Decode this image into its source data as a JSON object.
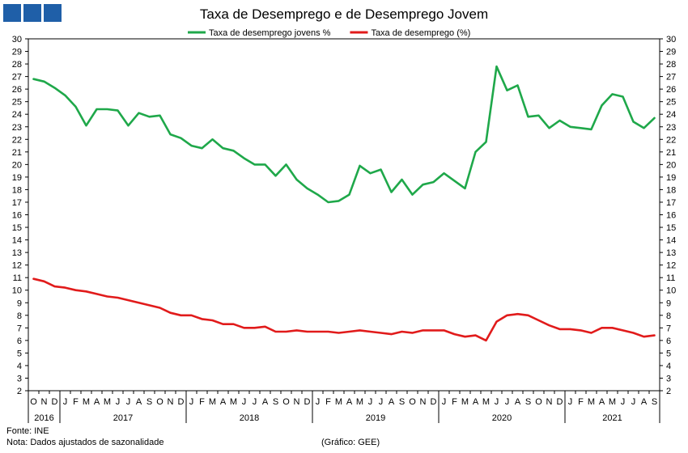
{
  "chart_data": {
    "type": "line",
    "title": "Taxa de Desemprego e de Desemprego Jovem",
    "ylim": [
      2,
      30
    ],
    "y_ticks": [
      2,
      3,
      4,
      5,
      6,
      7,
      8,
      9,
      10,
      11,
      12,
      13,
      14,
      15,
      16,
      17,
      18,
      19,
      20,
      21,
      22,
      23,
      24,
      25,
      26,
      27,
      28,
      29,
      30
    ],
    "x_month_labels": [
      "O",
      "N",
      "D",
      "J",
      "F",
      "M",
      "A",
      "M",
      "J",
      "J",
      "A",
      "S",
      "O",
      "N",
      "D",
      "J",
      "F",
      "M",
      "A",
      "M",
      "J",
      "J",
      "A",
      "S",
      "O",
      "N",
      "D",
      "J",
      "F",
      "M",
      "A",
      "M",
      "J",
      "J",
      "A",
      "S",
      "O",
      "N",
      "D",
      "J",
      "F",
      "M",
      "A",
      "M",
      "J",
      "J",
      "A",
      "S",
      "O",
      "N",
      "D",
      "J",
      "F",
      "M",
      "A",
      "M",
      "J",
      "J",
      "A",
      "S"
    ],
    "x_year_labels": [
      {
        "label": "2016",
        "start": 0,
        "end": 2
      },
      {
        "label": "2017",
        "start": 3,
        "end": 14
      },
      {
        "label": "2018",
        "start": 15,
        "end": 26
      },
      {
        "label": "2019",
        "start": 27,
        "end": 38
      },
      {
        "label": "2020",
        "start": 39,
        "end": 50
      },
      {
        "label": "2021",
        "start": 51,
        "end": 59
      }
    ],
    "legend_position": "top-center",
    "grid": false,
    "series": [
      {
        "name": "Taxa de desemprego jovens %",
        "color": "#1fa84a",
        "values": [
          26.8,
          26.6,
          26.1,
          25.5,
          24.6,
          23.1,
          24.4,
          24.4,
          24.3,
          23.1,
          24.1,
          23.8,
          23.9,
          22.4,
          22.1,
          21.5,
          21.3,
          22.0,
          21.3,
          21.1,
          20.5,
          20.0,
          20.0,
          19.1,
          20.0,
          18.8,
          18.1,
          17.6,
          17.0,
          17.1,
          17.6,
          19.9,
          19.3,
          19.6,
          17.8,
          18.8,
          17.6,
          18.4,
          18.6,
          19.3,
          18.7,
          18.1,
          21.0,
          21.8,
          27.8,
          25.9,
          26.3,
          23.8,
          23.9,
          22.9,
          23.5,
          23.0,
          22.9,
          22.8,
          24.7,
          25.6,
          25.4,
          23.4,
          22.9,
          23.7
        ]
      },
      {
        "name": "Taxa de desemprego (%)",
        "color": "#e11b1b",
        "values": [
          10.9,
          10.7,
          10.3,
          10.2,
          10.0,
          9.9,
          9.7,
          9.5,
          9.4,
          9.2,
          9.0,
          8.8,
          8.6,
          8.2,
          8.0,
          8.0,
          7.7,
          7.6,
          7.3,
          7.3,
          7.0,
          7.0,
          7.1,
          6.7,
          6.7,
          6.8,
          6.7,
          6.7,
          6.7,
          6.6,
          6.7,
          6.8,
          6.7,
          6.6,
          6.5,
          6.7,
          6.6,
          6.8,
          6.8,
          6.8,
          6.5,
          6.3,
          6.4,
          6.0,
          7.5,
          8.0,
          8.1,
          8.0,
          7.6,
          7.2,
          6.9,
          6.9,
          6.8,
          6.6,
          7.0,
          7.0,
          6.8,
          6.6,
          6.3,
          6.4
        ]
      }
    ]
  },
  "footer": {
    "source": "Fonte: INE",
    "note": "Nota: Dados ajustados de sazonalidade",
    "credit": "(Gráfico: GEE)"
  }
}
